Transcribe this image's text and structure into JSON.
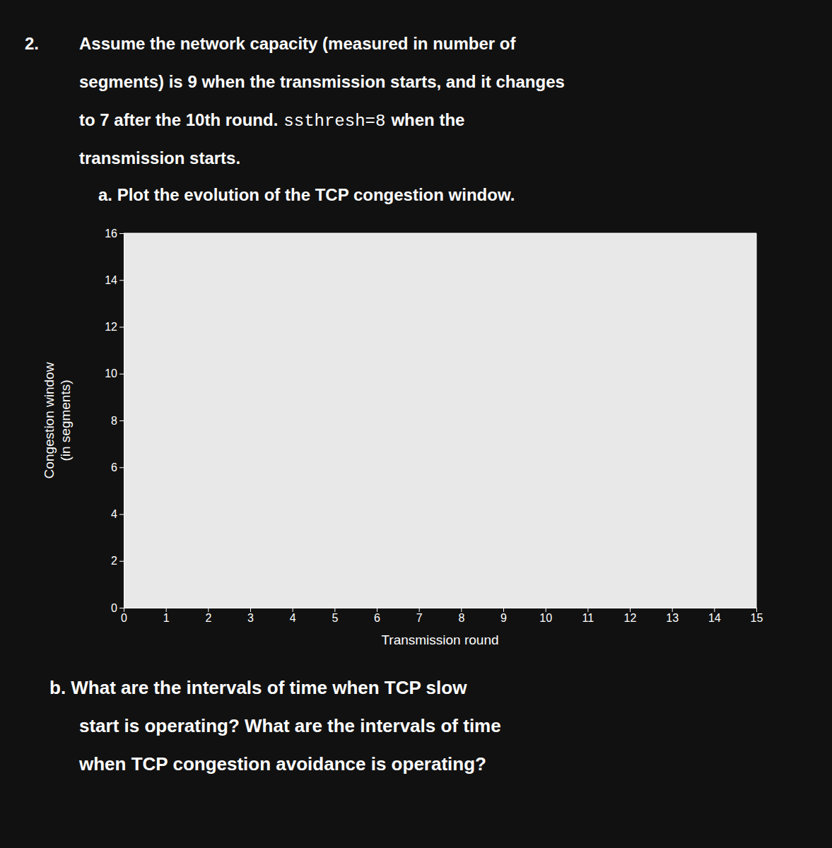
{
  "chart_data": {
    "type": "line",
    "annotations": [
      "2.",
      "Assume the network capacity (measured in number of",
      "segments) is 9 when the transmission starts, and it changes",
      "to 7 after the 10th round.",
      "ssthresh=8",
      "when the",
      "transmission starts.",
      "a.  Plot the evolution of the TCP congestion window.",
      "b.  What are the intervals of time when TCP slow",
      "start is operating? What are the intervals of time",
      "when TCP congestion avoidance is operating?"
    ],
    "xlabel": "Transmission round",
    "ylabel": [
      "Congestion window",
      "(in segments)"
    ],
    "series": [],
    "xlim": [
      0,
      15
    ],
    "xticks": [
      0,
      1,
      2,
      3,
      4,
      5,
      6,
      7,
      8,
      9,
      10,
      11,
      12,
      13,
      14,
      15
    ],
    "ylim": [
      0,
      16
    ],
    "yticks": [
      0,
      2,
      4,
      6,
      8,
      10,
      12,
      14,
      16
    ],
    "grid": false
  }
}
